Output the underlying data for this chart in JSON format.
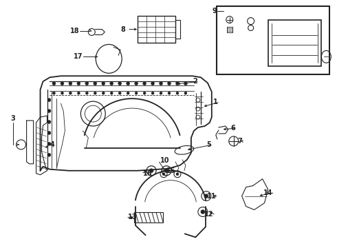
{
  "bg_color": "#ffffff",
  "line_color": "#222222",
  "label_color": "#000000",
  "fig_width": 4.9,
  "fig_height": 3.6,
  "dpi": 100
}
